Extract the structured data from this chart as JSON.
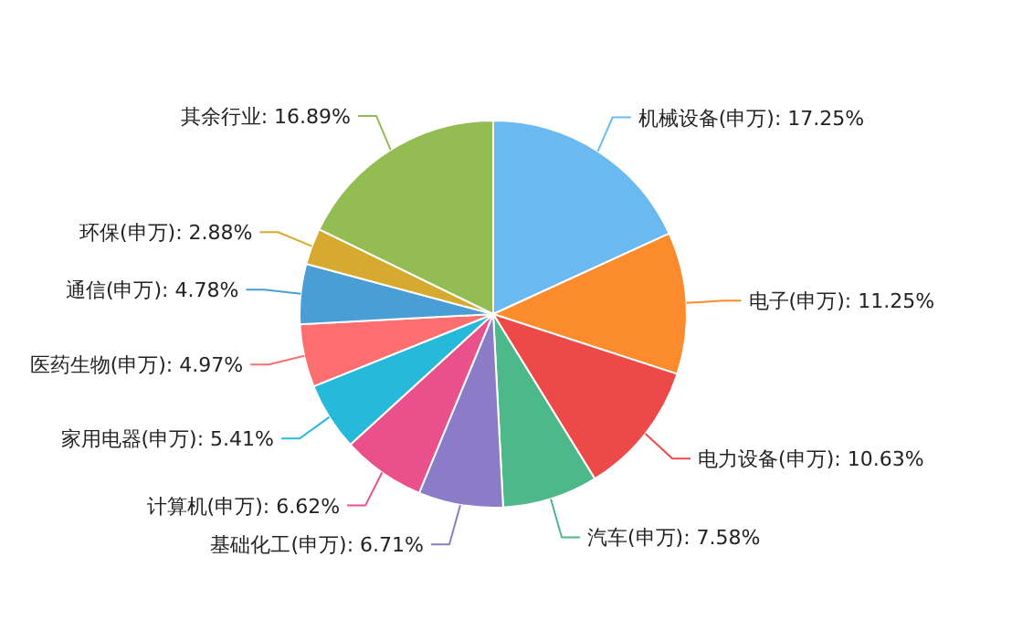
{
  "chart_data": {
    "type": "pie",
    "categories": [
      "机械设备(申万)",
      "电子(申万)",
      "电力设备(申万)",
      "汽车(申万)",
      "基础化工(申万)",
      "计算机(申万)",
      "家用电器(申万)",
      "医药生物(申万)",
      "通信(申万)",
      "环保(申万)",
      "其余行业"
    ],
    "values": [
      17.25,
      11.25,
      10.63,
      7.58,
      6.71,
      6.62,
      5.41,
      4.97,
      4.78,
      2.88,
      16.89
    ],
    "colors": [
      "#6bb9f1",
      "#fb8b2c",
      "#ee4949",
      "#4db889",
      "#8a7cc7",
      "#ea508c",
      "#27b9d9",
      "#fc6e6f",
      "#4a9ed6",
      "#d6a92f",
      "#93bc53"
    ],
    "value_labels": [
      ": 17.25%",
      ": 11.25%",
      ": 10.63%",
      ": 7.58%",
      ": 6.71%",
      ": 6.62%",
      ": 5.41%",
      ": 4.97%",
      ": 4.78%",
      ": 2.88%",
      ": 16.89%"
    ]
  }
}
